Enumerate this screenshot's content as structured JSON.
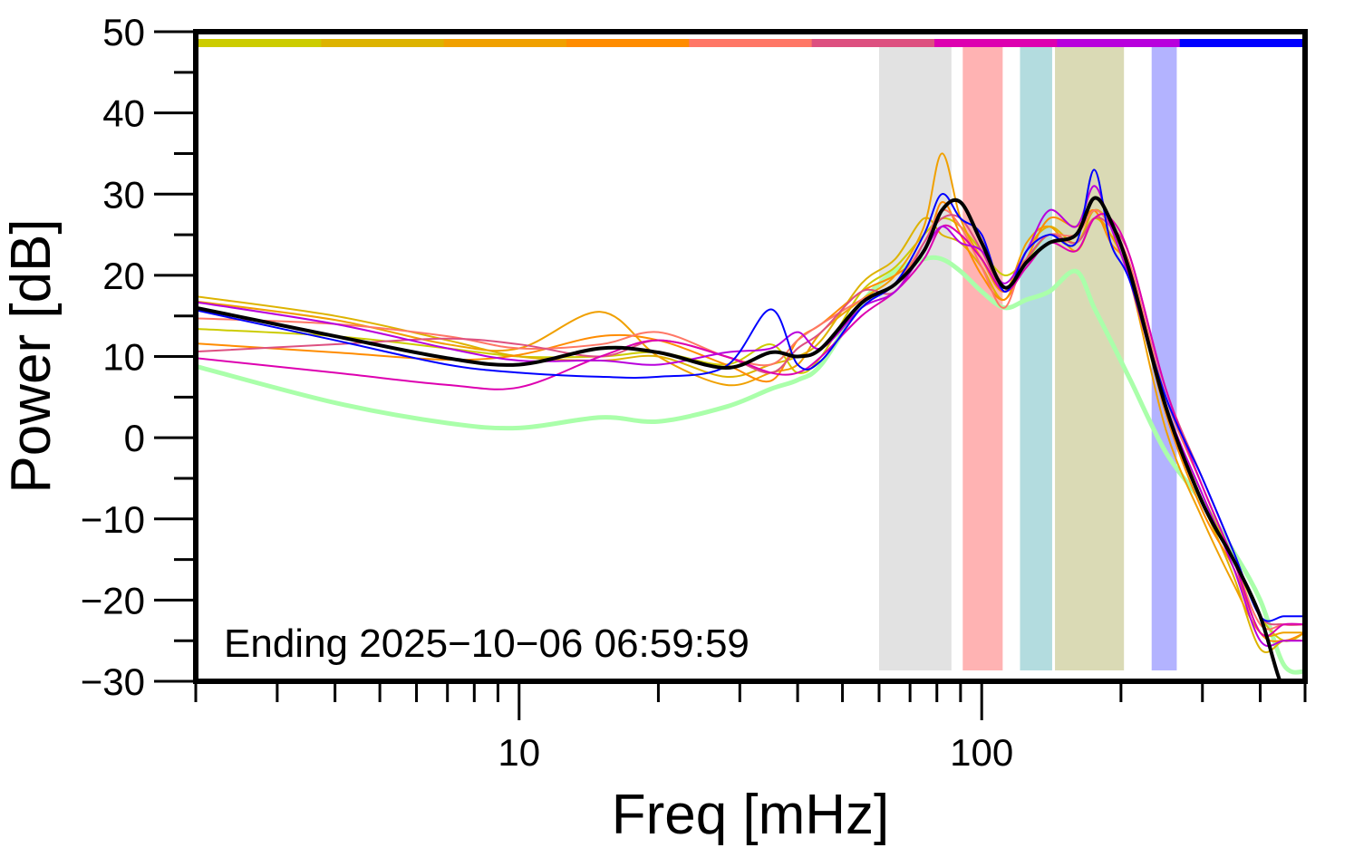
{
  "chart_data": {
    "type": "line",
    "xlabel": "Freq [mHz]",
    "ylabel": "Power [dB]",
    "x_scale": "log",
    "xlim": [
      2,
      500
    ],
    "ylim": [
      -30,
      50
    ],
    "yticks": [
      -30,
      -20,
      -10,
      0,
      10,
      20,
      30,
      40,
      50
    ],
    "ytick_labels": [
      "−30",
      "−20",
      "−10",
      "0",
      "10",
      "20",
      "30",
      "40",
      "50"
    ],
    "xticks": [
      10,
      100
    ],
    "xtick_labels": [
      "10",
      "100"
    ],
    "grid": false,
    "annotation": "Ending 2025−10−06 06:59:59",
    "color_bar": [
      "#cccc00",
      "#ddb300",
      "#f0a000",
      "#ff8c00",
      "#ff7766",
      "#dd5080",
      "#dd00b0",
      "#b800dd",
      "#0000ff"
    ],
    "bands": [
      {
        "from": 60,
        "to": 86,
        "color": "#e2e2e2"
      },
      {
        "from": 91,
        "to": 111,
        "color": "#ffb3b3"
      },
      {
        "from": 121,
        "to": 142,
        "color": "#b3dcdf"
      },
      {
        "from": 144,
        "to": 203,
        "color": "#dadab5"
      },
      {
        "from": 233,
        "to": 264,
        "color": "#b3b3ff"
      }
    ],
    "x": [
      2,
      4,
      7,
      10,
      15,
      20,
      28,
      35,
      40,
      45,
      55,
      65,
      75,
      82,
      90,
      100,
      112,
      125,
      140,
      160,
      175,
      190,
      210,
      250,
      300,
      350,
      400,
      450,
      500
    ],
    "series": [
      {
        "color": "#aaffaa",
        "width": 5,
        "values": [
          8.8,
          4.3,
          1.8,
          1.2,
          2.5,
          2,
          3.8,
          6,
          7.1,
          9,
          16.6,
          20.5,
          22,
          22,
          20.5,
          18,
          16,
          17,
          18,
          20.5,
          16,
          12,
          7,
          -1.8,
          -8,
          -14,
          -20,
          -28,
          -28.8
        ]
      },
      {
        "color": "#cccc00",
        "width": 2,
        "values": [
          13.4,
          12.5,
          11,
          10,
          10,
          10.5,
          9,
          11.5,
          8,
          10,
          18,
          21,
          25,
          27,
          26,
          23,
          20,
          22,
          25,
          24,
          27,
          25,
          21,
          4,
          -7,
          -15,
          -22,
          -25,
          -24
        ]
      },
      {
        "color": "#ddb300",
        "width": 2,
        "values": [
          17.4,
          15,
          12,
          10,
          9.5,
          10,
          7.5,
          9,
          10,
          12,
          19,
          22,
          27,
          25,
          24,
          21,
          17,
          23,
          26,
          24,
          28,
          26,
          20,
          3,
          -8,
          -17,
          -26,
          -25,
          -25
        ]
      },
      {
        "color": "#f0a000",
        "width": 2,
        "values": [
          16.8,
          14.5,
          11.5,
          11,
          15.5,
          10,
          6.5,
          8,
          9,
          13,
          17,
          20,
          26,
          35,
          27,
          22,
          18,
          24,
          26,
          23,
          27,
          25,
          19,
          1,
          -10,
          -18,
          -24,
          -24,
          -24
        ]
      },
      {
        "color": "#ff8c00",
        "width": 2,
        "values": [
          11.6,
          10.5,
          9.6,
          10.2,
          12.5,
          12,
          9,
          7,
          12,
          14,
          18,
          20,
          23,
          29,
          25,
          20,
          17,
          22,
          27,
          26,
          28,
          24,
          20,
          3,
          -9,
          -16,
          -24,
          -25,
          -24
        ]
      },
      {
        "color": "#ff7766",
        "width": 2,
        "values": [
          14.7,
          14,
          12.5,
          11,
          11.5,
          13,
          10,
          9,
          12,
          14,
          17,
          19,
          24,
          28,
          26,
          21,
          16,
          23,
          25,
          25,
          28,
          26,
          21,
          5,
          -6,
          -15,
          -23,
          -23,
          -23
        ]
      },
      {
        "color": "#dd5080",
        "width": 2,
        "values": [
          10.6,
          11.5,
          12.2,
          11.5,
          10,
          12,
          10,
          8,
          11,
          13,
          18,
          18,
          24,
          27,
          27,
          23,
          18,
          22,
          25,
          24,
          27,
          26,
          22,
          6,
          -5,
          -14,
          -22,
          -23,
          -23
        ]
      },
      {
        "color": "#dd00b0",
        "width": 2,
        "values": [
          9.8,
          8,
          6.5,
          6.2,
          10,
          12,
          10,
          8,
          8,
          10,
          15,
          18,
          22,
          26,
          25,
          22,
          18,
          21,
          24,
          23,
          27,
          27,
          22,
          6,
          -6,
          -15,
          -24,
          -23,
          -23
        ]
      },
      {
        "color": "#b800dd",
        "width": 2,
        "values": [
          16.7,
          14,
          11,
          9.5,
          9.5,
          9,
          10.5,
          11,
          13,
          11,
          16,
          18,
          23,
          26,
          24,
          23,
          19,
          23,
          28,
          26,
          31,
          26,
          19,
          4,
          -7,
          -16,
          -25,
          -25,
          -25
        ]
      },
      {
        "color": "#0000ff",
        "width": 2,
        "values": [
          15.7,
          12,
          9,
          8,
          7.5,
          7.5,
          8.8,
          15.8,
          9,
          9.5,
          16,
          19,
          25,
          30,
          27,
          25,
          18,
          23,
          25,
          24,
          33,
          24,
          19,
          5,
          -5,
          -14,
          -22,
          -22,
          -22
        ]
      },
      {
        "color": "#000000",
        "width": 4,
        "values": [
          16,
          12.5,
          9.8,
          9,
          11,
          10.5,
          8.6,
          10.5,
          10,
          11,
          16.6,
          18.9,
          23,
          28,
          29,
          24,
          18.5,
          21.6,
          24,
          25,
          29.5,
          26.7,
          20,
          3.8,
          -8,
          -15,
          -22,
          -31,
          -31
        ]
      }
    ]
  }
}
